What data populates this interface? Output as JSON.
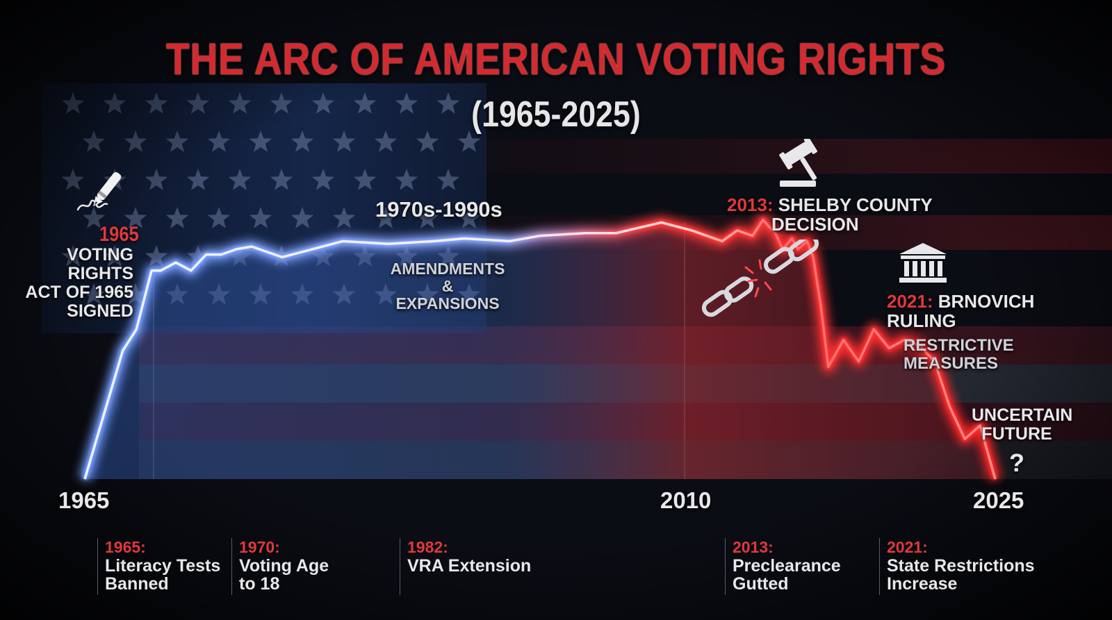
{
  "header": {
    "title": "THE ARC OF AMERICAN VOTING RIGHTS",
    "subtitle": "(1965-2025)"
  },
  "colors": {
    "accent_red": "#e0383c",
    "line_blue_glow": "#7fa8ff",
    "line_red_glow": "#ff2a2a",
    "background": "#0b0d14"
  },
  "annotations": {
    "signing": {
      "year": "1965",
      "l1": "VOTING RIGHTS",
      "l2": "ACT OF 1965",
      "l3": "SIGNED",
      "icon": "pen-signature-icon"
    },
    "era": {
      "label": "1970s-1990s",
      "sub1": "AMENDMENTS &",
      "sub2": "EXPANSIONS"
    },
    "shelby": {
      "year": "2013:",
      "l1": "SHELBY COUNTY",
      "l2": "DECISION",
      "icon": "gavel-icon"
    },
    "chain": {
      "icon": "broken-chain-icon"
    },
    "brnovich": {
      "year": "2021:",
      "l1": "BRNOVICH",
      "l2": "RULING",
      "icon": "courthouse-icon"
    },
    "restrictive": {
      "l1": "RESTRICTIVE",
      "l2": "MEASURES"
    },
    "future": {
      "l1": "UNCERTAIN",
      "l2": "FUTURE",
      "mark": "?"
    }
  },
  "timeline": [
    {
      "year": "1965:",
      "l1": "Literacy Tests",
      "l2": "Banned"
    },
    {
      "year": "1970:",
      "l1": "Voting Age",
      "l2": "to 18"
    },
    {
      "year": "1982:",
      "l1": "VRA Extension",
      "l2": ""
    },
    {
      "year": "2013:",
      "l1": "Preclearance",
      "l2": "Gutted"
    },
    {
      "year": "2021:",
      "l1": "State Restrictions",
      "l2": "Increase"
    }
  ],
  "chart_data": {
    "type": "line",
    "title": "THE ARC OF AMERICAN VOTING RIGHTS",
    "subtitle": "(1965-2025)",
    "x_ticks": [
      "1965",
      "2010",
      "2025"
    ],
    "xlim": [
      1965,
      2025
    ],
    "ylim": [
      0,
      100
    ],
    "series": [
      {
        "x": [
          1965,
          1967.5,
          1968.4,
          1969.4,
          1970,
          1971,
          1972,
          1973,
          1974,
          1975,
          1976,
          1978,
          1980,
          1982,
          1985,
          1988,
          1990,
          1993,
          1995,
          1998,
          2000,
          2003,
          2005,
          2007,
          2008,
          2009,
          2009.7,
          2010,
          2010.5,
          2011,
          2011.6,
          2012,
          2012.6,
          2013,
          2013.5,
          2014,
          2015,
          2016,
          2017,
          2018,
          2019,
          2020,
          2021,
          2022,
          2023,
          2024,
          2025
        ],
        "y": [
          0,
          48,
          56,
          78,
          78,
          81,
          78,
          84,
          84,
          86,
          87,
          83,
          86,
          89,
          88,
          89,
          90,
          89,
          91,
          92,
          92,
          96,
          93,
          89,
          93,
          91,
          97,
          95,
          92,
          86,
          90,
          86,
          89,
          83,
          65,
          42,
          52,
          44,
          56,
          49,
          52,
          50,
          44,
          27,
          15,
          20,
          0
        ]
      }
    ]
  }
}
